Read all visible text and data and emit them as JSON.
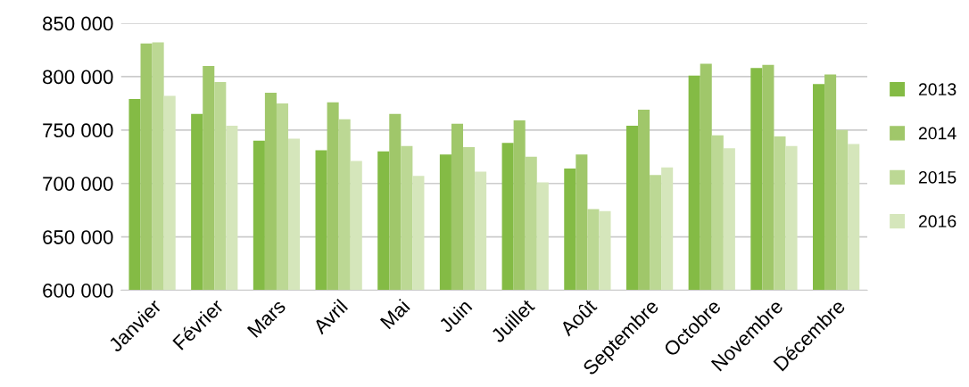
{
  "chart_data": {
    "type": "bar",
    "categories": [
      "Janvier",
      "Février",
      "Mars",
      "Avril",
      "Mai",
      "Juin",
      "Juillet",
      "Août",
      "Septembre",
      "Octobre",
      "Novembre",
      "Décembre"
    ],
    "series": [
      {
        "name": "2013",
        "color": "#84bb45",
        "values": [
          779000,
          765000,
          740000,
          731000,
          730000,
          727000,
          738000,
          714000,
          754000,
          801000,
          808000,
          793000
        ]
      },
      {
        "name": "2014",
        "color": "#a0c76a",
        "values": [
          831000,
          810000,
          785000,
          776000,
          765000,
          756000,
          759000,
          727000,
          769000,
          812000,
          811000,
          802000
        ]
      },
      {
        "name": "2015",
        "color": "#bcd894",
        "values": [
          832000,
          795000,
          775000,
          760000,
          735000,
          734000,
          725000,
          676000,
          708000,
          745000,
          744000,
          750000
        ]
      },
      {
        "name": "2016",
        "color": "#d5e6bb",
        "values": [
          782000,
          754000,
          742000,
          721000,
          707000,
          711000,
          701000,
          674000,
          715000,
          733000,
          735000,
          737000
        ]
      }
    ],
    "ylim": [
      600000,
      850000
    ],
    "yticks": [
      {
        "value": 600000,
        "label": "600 000"
      },
      {
        "value": 650000,
        "label": "650 000"
      },
      {
        "value": 700000,
        "label": "700 000"
      },
      {
        "value": 750000,
        "label": "750 000"
      },
      {
        "value": 800000,
        "label": "800 000"
      },
      {
        "value": 850000,
        "label": "850 000"
      }
    ],
    "grid": "y",
    "legend": "right"
  }
}
